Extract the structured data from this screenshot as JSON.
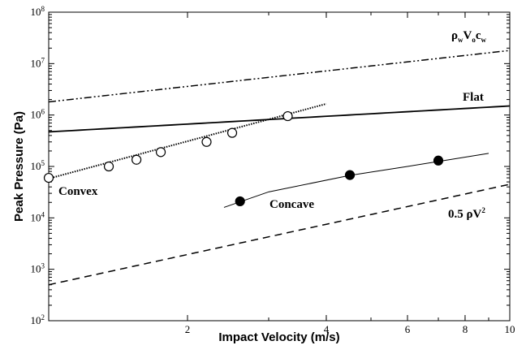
{
  "chart_data": {
    "type": "line",
    "xlabel": "Impact Velocity (m/s)",
    "ylabel": "Peak Pressure (Pa)",
    "x_scale": "log",
    "y_scale": "log",
    "xlim": [
      1,
      10
    ],
    "ylim": [
      100,
      100000000
    ],
    "grid": false,
    "x_ticks": [
      {
        "value": 2,
        "label": "2"
      },
      {
        "value": 4,
        "label": "4"
      },
      {
        "value": 6,
        "label": "6"
      },
      {
        "value": 8,
        "label": "8"
      },
      {
        "value": 10,
        "label": "10"
      }
    ],
    "y_ticks": [
      {
        "value": 100,
        "base": "10",
        "exp": "2"
      },
      {
        "value": 1000,
        "base": "10",
        "exp": "3"
      },
      {
        "value": 10000,
        "base": "10",
        "exp": "4"
      },
      {
        "value": 100000,
        "base": "10",
        "exp": "5"
      },
      {
        "value": 1000000,
        "base": "10",
        "exp": "6"
      },
      {
        "value": 10000000,
        "base": "10",
        "exp": "7"
      },
      {
        "value": 100000000,
        "base": "10",
        "exp": "8"
      }
    ],
    "series": [
      {
        "name": "ρwVocw",
        "label_parts": [
          {
            "t": "ρ",
            "s": ""
          },
          {
            "t": "w",
            "s": "sub"
          },
          {
            "t": "V",
            "s": ""
          },
          {
            "t": "o",
            "s": "sub"
          },
          {
            "t": "c",
            "s": ""
          },
          {
            "t": "w",
            "s": "sub"
          }
        ],
        "style": "dash-dot-dot",
        "x": [
          1,
          10
        ],
        "y": [
          1800000,
          18000000
        ]
      },
      {
        "name": "Flat",
        "label_parts": [
          {
            "t": "Flat",
            "s": ""
          }
        ],
        "style": "solid",
        "x": [
          1,
          10
        ],
        "y": [
          470000,
          1500000
        ]
      },
      {
        "name": "Convex",
        "label_parts": [
          {
            "t": "Convex",
            "s": ""
          }
        ],
        "style": "dotted",
        "x": [
          1,
          4
        ],
        "y": [
          58000,
          1650000
        ],
        "markers": "open-circle",
        "points": [
          {
            "x": 1.0,
            "y": 60000
          },
          {
            "x": 1.35,
            "y": 100000
          },
          {
            "x": 1.55,
            "y": 135000
          },
          {
            "x": 1.75,
            "y": 190000
          },
          {
            "x": 2.2,
            "y": 300000
          },
          {
            "x": 2.5,
            "y": 450000
          },
          {
            "x": 3.3,
            "y": 950000
          }
        ]
      },
      {
        "name": "Concave",
        "label_parts": [
          {
            "t": "Concave",
            "s": ""
          }
        ],
        "style": "thin-solid",
        "x": [
          2.4,
          3.0,
          4.5,
          6.0,
          7.0,
          9.0
        ],
        "y": [
          16000,
          32000,
          67000,
          100000,
          125000,
          180000
        ],
        "markers": "filled-circle",
        "points": [
          {
            "x": 2.6,
            "y": 21000
          },
          {
            "x": 4.5,
            "y": 68000
          },
          {
            "x": 7.0,
            "y": 130000
          }
        ]
      },
      {
        "name": "0.5 ρV2",
        "label_parts": [
          {
            "t": "0.5 ρV",
            "s": ""
          },
          {
            "t": "2",
            "s": "sup"
          }
        ],
        "style": "dashed",
        "x": [
          1,
          10
        ],
        "y": [
          500,
          45000
        ]
      }
    ]
  }
}
